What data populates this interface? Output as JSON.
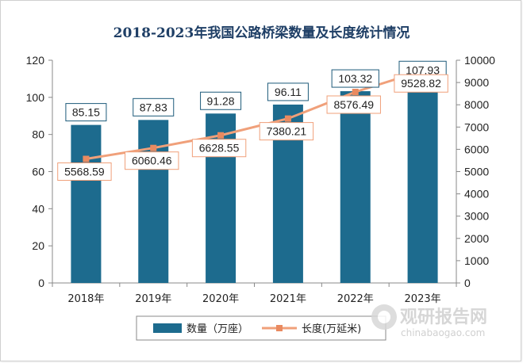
{
  "chart_data": {
    "type": "bar",
    "title": "2018-2023年我国公路桥梁数量及长度统计情况",
    "categories": [
      "2018年",
      "2019年",
      "2020年",
      "2021年",
      "2022年",
      "2023年"
    ],
    "series": [
      {
        "name": "数量（万座）",
        "type": "bar",
        "axis": "left",
        "values": [
          85.15,
          87.83,
          91.28,
          96.11,
          103.32,
          107.93
        ],
        "labels": [
          "85.15",
          "87.83",
          "91.28",
          "96.11",
          "103.32",
          "107.93"
        ]
      },
      {
        "name": "长度(万延米)",
        "type": "line",
        "axis": "right",
        "values": [
          5568.59,
          6060.46,
          6628.55,
          7380.21,
          8576.49,
          9528.82
        ],
        "labels": [
          "5568.59",
          "6060.46",
          "6628.55",
          "7380.21",
          "8576.49",
          "9528.82"
        ]
      }
    ],
    "y_left": {
      "ylim": [
        0,
        120
      ],
      "ticks": [
        "0",
        "20",
        "40",
        "60",
        "80",
        "100",
        "120"
      ]
    },
    "y_right": {
      "ylim": [
        0,
        10000
      ],
      "ticks": [
        "0",
        "1000",
        "2000",
        "3000",
        "4000",
        "5000",
        "6000",
        "7000",
        "8000",
        "9000",
        "10000"
      ]
    },
    "grid": false,
    "legend_position": "bottom",
    "colors": {
      "bar": "#1d6b8e",
      "line": "#f0a07a",
      "marker": "#e98a60",
      "bar_label_border": "#1d5a7a",
      "line_label_border": "#f0a07a"
    }
  },
  "watermark": {
    "text": "观研报告网",
    "url": "chinabaogao.com"
  }
}
